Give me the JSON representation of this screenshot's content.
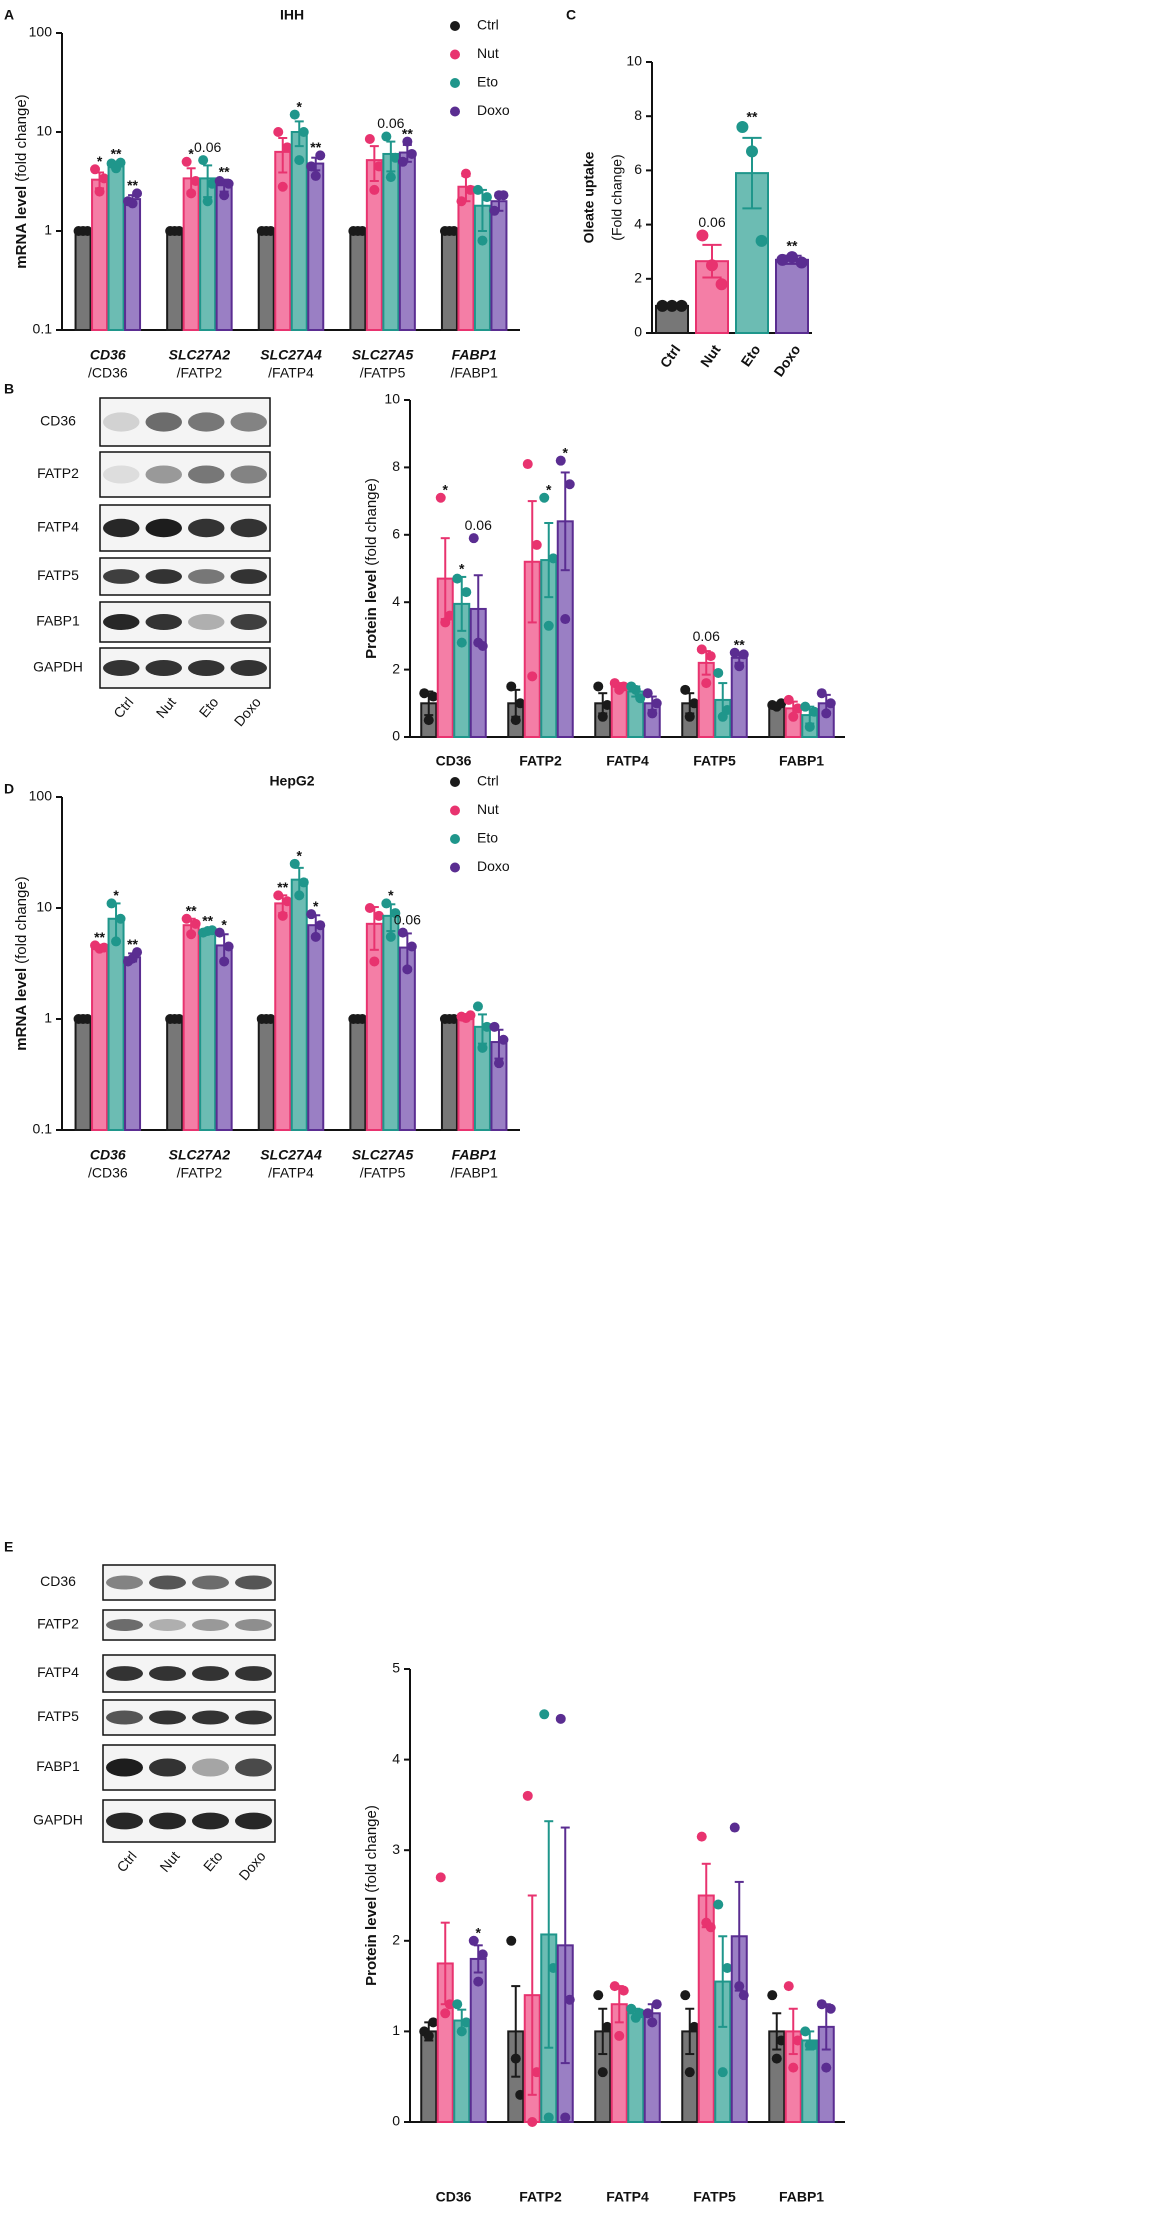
{
  "chart_data": [
    {
      "type": "bar",
      "panel_label": "A",
      "title": "IHH",
      "log_scale": true,
      "legend": "right",
      "ylabel": "mRNA level",
      "ylabel_unit": "(fold change)",
      "categories": [
        "CD36",
        "SLC27A2",
        "SLC27A4",
        "SLC27A5",
        "FABP1"
      ],
      "category_sublabels": [
        "/CD36",
        "/FATP2",
        "/FATP4",
        "/FATP5",
        "/FABP1"
      ],
      "ylim": [
        0.1,
        100
      ],
      "yticks": [
        0.1,
        1,
        10,
        100
      ],
      "series": [
        {
          "name": "Ctrl",
          "color": "#1a1a1a",
          "fill_color": "#777777",
          "values": [
            1,
            1,
            1,
            1,
            1
          ],
          "errors": [
            0,
            0,
            0,
            0,
            0
          ],
          "points": [
            [
              1,
              1,
              1
            ],
            [
              1,
              1,
              1
            ],
            [
              1,
              1,
              1
            ],
            [
              1,
              1,
              1
            ],
            [
              1,
              1,
              1
            ]
          ]
        },
        {
          "name": "Nut",
          "color": "#e8336f",
          "fill_color": "#f47ea6",
          "values": [
            3.3,
            3.4,
            6.3,
            5.2,
            2.8
          ],
          "errors": [
            0.6,
            0.9,
            2.4,
            2.0,
            0.8
          ],
          "points": [
            [
              4.2,
              2.5,
              3.4
            ],
            [
              5.0,
              2.4,
              3.2
            ],
            [
              10.0,
              2.8,
              7.0
            ],
            [
              8.5,
              2.6,
              4.5
            ],
            [
              2.0,
              3.8,
              2.6
            ]
          ],
          "annotations": [
            "*",
            "*",
            null,
            null,
            null
          ]
        },
        {
          "name": "Eto",
          "color": "#1f968b",
          "fill_color": "#6cbcb3",
          "values": [
            4.6,
            3.4,
            10.0,
            6.0,
            1.8
          ],
          "errors": [
            0.4,
            1.2,
            2.8,
            2.0,
            0.8
          ],
          "points": [
            [
              4.8,
              4.3,
              4.9
            ],
            [
              5.2,
              2.0,
              3.0
            ],
            [
              15.0,
              5.2,
              10.0
            ],
            [
              9.0,
              3.5,
              5.5
            ],
            [
              2.6,
              0.8,
              2.2
            ]
          ],
          "annotations": [
            "**",
            "0.06",
            "*",
            "0.06",
            null
          ]
        },
        {
          "name": "Doxo",
          "color": "#5a2d91",
          "fill_color": "#9a7fc4",
          "values": [
            2.1,
            2.9,
            4.8,
            6.2,
            2.0
          ],
          "errors": [
            0.2,
            0.4,
            0.7,
            1.2,
            0.4
          ],
          "points": [
            [
              2.0,
              1.9,
              2.4
            ],
            [
              3.2,
              2.3,
              3.0
            ],
            [
              4.5,
              3.6,
              5.8
            ],
            [
              5.0,
              8.0,
              6.0
            ],
            [
              1.6,
              2.3,
              2.3
            ]
          ],
          "annotations": [
            "**",
            "**",
            "**",
            "**",
            null
          ]
        }
      ]
    },
    {
      "type": "bar",
      "panel_label": "C",
      "ylabel": "Oleate uptake",
      "ylabel_unit": "(Fold change)",
      "categories": [
        "Ctrl",
        "Nut",
        "Eto",
        "Doxo"
      ],
      "values": [
        1,
        2.65,
        5.9,
        2.7
      ],
      "errors": [
        0,
        0.6,
        1.3,
        0.15
      ],
      "points": [
        [
          1,
          1,
          1
        ],
        [
          3.6,
          2.5,
          1.8
        ],
        [
          7.6,
          6.7,
          3.4
        ],
        [
          2.7,
          2.8,
          2.6
        ]
      ],
      "annotations": [
        null,
        "0.06",
        "**",
        "**"
      ],
      "colors": [
        "#1a1a1a",
        "#e8336f",
        "#1f968b",
        "#5a2d91"
      ],
      "fill_colors": [
        "#777777",
        "#f47ea6",
        "#6cbcb3",
        "#9a7fc4"
      ],
      "ylim": [
        0,
        10
      ],
      "yticks": [
        0,
        2,
        4,
        6,
        8,
        10
      ]
    },
    {
      "type": "bar",
      "panel_label": "B",
      "ylabel": "Protein level",
      "ylabel_unit": "(fold change)",
      "categories": [
        "CD36",
        "FATP2",
        "FATP4",
        "FATP5",
        "FABP1"
      ],
      "ylim": [
        0,
        10
      ],
      "yticks": [
        0,
        2,
        4,
        6,
        8,
        10
      ],
      "series": [
        {
          "name": "Ctrl",
          "color": "#1a1a1a",
          "fill_color": "#777777",
          "values": [
            1.0,
            1.0,
            1.0,
            1.0,
            0.95
          ],
          "errors": [
            0.35,
            0.4,
            0.3,
            0.3,
            0.05
          ],
          "points": [
            [
              1.3,
              0.5,
              1.2
            ],
            [
              1.5,
              0.5,
              1.0
            ],
            [
              1.5,
              0.6,
              0.95
            ],
            [
              1.4,
              0.6,
              1.0
            ],
            [
              0.95,
              0.9,
              1.0
            ]
          ]
        },
        {
          "name": "Nut",
          "color": "#e8336f",
          "fill_color": "#f47ea6",
          "values": [
            4.7,
            5.2,
            1.5,
            2.2,
            0.85
          ],
          "errors": [
            1.2,
            1.8,
            0.1,
            0.35,
            0.2
          ],
          "points": [
            [
              7.1,
              3.4,
              3.6
            ],
            [
              8.1,
              1.8,
              5.7
            ],
            [
              1.6,
              1.4,
              1.5
            ],
            [
              2.6,
              1.6,
              2.4
            ],
            [
              1.1,
              0.6,
              0.85
            ]
          ],
          "annotations": [
            "*",
            null,
            null,
            "0.06",
            null
          ]
        },
        {
          "name": "Eto",
          "color": "#1f968b",
          "fill_color": "#6cbcb3",
          "values": [
            3.95,
            5.25,
            1.35,
            1.1,
            0.65
          ],
          "errors": [
            0.8,
            1.1,
            0.15,
            0.5,
            0.25
          ],
          "points": [
            [
              4.7,
              2.8,
              4.3
            ],
            [
              7.1,
              3.3,
              5.3
            ],
            [
              1.5,
              1.4,
              1.15
            ],
            [
              1.9,
              0.6,
              0.8
            ],
            [
              0.9,
              0.3,
              0.75
            ]
          ],
          "annotations": [
            "*",
            "*",
            null,
            null,
            null
          ]
        },
        {
          "name": "Doxo",
          "color": "#5a2d91",
          "fill_color": "#9a7fc4",
          "values": [
            3.8,
            6.4,
            1.0,
            2.35,
            1.0
          ],
          "errors": [
            1.0,
            1.45,
            0.2,
            0.15,
            0.25
          ],
          "points": [
            [
              5.9,
              2.8,
              2.7
            ],
            [
              8.2,
              3.5,
              7.5
            ],
            [
              1.3,
              0.7,
              1.0
            ],
            [
              2.5,
              2.1,
              2.45
            ],
            [
              1.3,
              0.7,
              1.0
            ]
          ],
          "annotations": [
            "0.06",
            "*",
            null,
            "**",
            null
          ]
        }
      ]
    },
    {
      "type": "bar",
      "panel_label": "D",
      "title": "HepG2",
      "log_scale": true,
      "legend": "right",
      "ylabel": "mRNA level",
      "ylabel_unit": "(fold change)",
      "categories": [
        "CD36",
        "SLC27A2",
        "SLC27A4",
        "SLC27A5",
        "FABP1"
      ],
      "category_sublabels": [
        "/CD36",
        "/FATP2",
        "/FATP4",
        "/FATP5",
        "/FABP1"
      ],
      "ylim": [
        0.1,
        100
      ],
      "yticks": [
        0.1,
        1,
        10,
        100
      ],
      "series": [
        {
          "name": "Ctrl",
          "color": "#1a1a1a",
          "fill_color": "#777777",
          "values": [
            1,
            1,
            1,
            1,
            1
          ],
          "errors": [
            0,
            0,
            0,
            0,
            0
          ],
          "points": [
            [
              1,
              1,
              1
            ],
            [
              1,
              1,
              1
            ],
            [
              1,
              1,
              1
            ],
            [
              1,
              1,
              1
            ],
            [
              1,
              1,
              1
            ]
          ]
        },
        {
          "name": "Nut",
          "color": "#e8336f",
          "fill_color": "#f47ea6",
          "values": [
            4.4,
            7.0,
            11,
            7.2,
            1.05
          ],
          "errors": [
            0.15,
            1.0,
            2.0,
            3.0,
            0.03
          ],
          "points": [
            [
              4.6,
              4.3,
              4.4
            ],
            [
              8.0,
              5.8,
              7.2
            ],
            [
              13,
              8.5,
              11.5
            ],
            [
              10,
              3.3,
              8.5
            ],
            [
              1.05,
              1.02,
              1.08
            ]
          ],
          "annotations": [
            "**",
            "**",
            "**",
            null,
            null
          ]
        },
        {
          "name": "Eto",
          "color": "#1f968b",
          "fill_color": "#6cbcb3",
          "values": [
            8.0,
            6.2,
            18,
            8.5,
            0.85
          ],
          "errors": [
            3.0,
            0.3,
            5.0,
            2.3,
            0.25
          ],
          "points": [
            [
              11,
              5,
              8
            ],
            [
              6.0,
              6.2,
              6.3
            ],
            [
              25,
              13,
              17
            ],
            [
              11,
              5.5,
              9
            ],
            [
              1.3,
              0.55,
              0.85
            ]
          ],
          "annotations": [
            "*",
            "**",
            "*",
            "*",
            null
          ]
        },
        {
          "name": "Doxo",
          "color": "#5a2d91",
          "fill_color": "#9a7fc4",
          "values": [
            3.6,
            4.6,
            7.0,
            4.4,
            0.62
          ],
          "errors": [
            0.3,
            1.2,
            1.6,
            1.5,
            0.18
          ],
          "points": [
            [
              3.3,
              3.5,
              4.0
            ],
            [
              6.0,
              3.3,
              4.5
            ],
            [
              8.8,
              5.5,
              7.0
            ],
            [
              6.0,
              2.8,
              4.5
            ],
            [
              0.85,
              0.4,
              0.65
            ]
          ],
          "annotations": [
            "**",
            "*",
            "*",
            "0.06",
            null
          ]
        }
      ]
    },
    {
      "type": "bar",
      "panel_label": "E",
      "ylabel": "Protein level",
      "ylabel_unit": "(fold change)",
      "categories": [
        "CD36",
        "FATP2",
        "FATP4",
        "FATP5",
        "FABP1"
      ],
      "ylim": [
        0,
        5
      ],
      "yticks": [
        0,
        1,
        2,
        3,
        4,
        5
      ],
      "series": [
        {
          "name": "Ctrl",
          "color": "#1a1a1a",
          "fill_color": "#777777",
          "values": [
            1.0,
            1.0,
            1.0,
            1.0,
            1.0
          ],
          "errors": [
            0.1,
            0.5,
            0.25,
            0.25,
            0.2
          ],
          "points": [
            [
              1.0,
              0.95,
              1.1
            ],
            [
              2.0,
              0.7,
              0.3
            ],
            [
              1.4,
              0.55,
              1.05
            ],
            [
              1.4,
              0.55,
              1.05
            ],
            [
              1.4,
              0.7,
              0.9
            ]
          ]
        },
        {
          "name": "Nut",
          "color": "#e8336f",
          "fill_color": "#f47ea6",
          "values": [
            1.75,
            1.4,
            1.3,
            2.5,
            1.0
          ],
          "errors": [
            0.45,
            1.1,
            0.2,
            0.35,
            0.25
          ],
          "points": [
            [
              2.7,
              1.2,
              1.3
            ],
            [
              3.6,
              0.0,
              0.55
            ],
            [
              1.5,
              0.95,
              1.45
            ],
            [
              3.15,
              2.2,
              2.15
            ],
            [
              1.5,
              0.6,
              0.9
            ]
          ]
        },
        {
          "name": "Eto",
          "color": "#1f968b",
          "fill_color": "#6cbcb3",
          "values": [
            1.12,
            2.07,
            1.2,
            1.55,
            0.9
          ],
          "errors": [
            0.12,
            1.25,
            0.05,
            0.5,
            0.1
          ],
          "points": [
            [
              1.3,
              1.0,
              1.1
            ],
            [
              4.5,
              0.05,
              1.7
            ],
            [
              1.25,
              1.15,
              1.2
            ],
            [
              2.4,
              0.55,
              1.7
            ],
            [
              1.0,
              0.85,
              0.85
            ]
          ]
        },
        {
          "name": "Doxo",
          "color": "#5a2d91",
          "fill_color": "#9a7fc4",
          "values": [
            1.8,
            1.95,
            1.2,
            2.05,
            1.05
          ],
          "errors": [
            0.15,
            1.3,
            0.1,
            0.6,
            0.25
          ],
          "points": [
            [
              2.0,
              1.55,
              1.85
            ],
            [
              4.45,
              0.05,
              1.35
            ],
            [
              1.2,
              1.1,
              1.3
            ],
            [
              3.25,
              1.5,
              1.4
            ],
            [
              1.3,
              0.6,
              1.25
            ]
          ],
          "annotations": [
            "*",
            null,
            null,
            null,
            null
          ]
        }
      ]
    }
  ],
  "blots": [
    {
      "rows": [
        "CD36",
        "FATP2",
        "FATP4",
        "FATP5",
        "FABP1",
        "GAPDH"
      ],
      "lanes": [
        "Ctrl",
        "Nut",
        "Eto",
        "Doxo"
      ]
    },
    {
      "rows": [
        "CD36",
        "FATP2",
        "FATP4",
        "FATP5",
        "FABP1",
        "GAPDH"
      ],
      "lanes": [
        "Ctrl",
        "Nut",
        "Eto",
        "Doxo"
      ]
    }
  ]
}
